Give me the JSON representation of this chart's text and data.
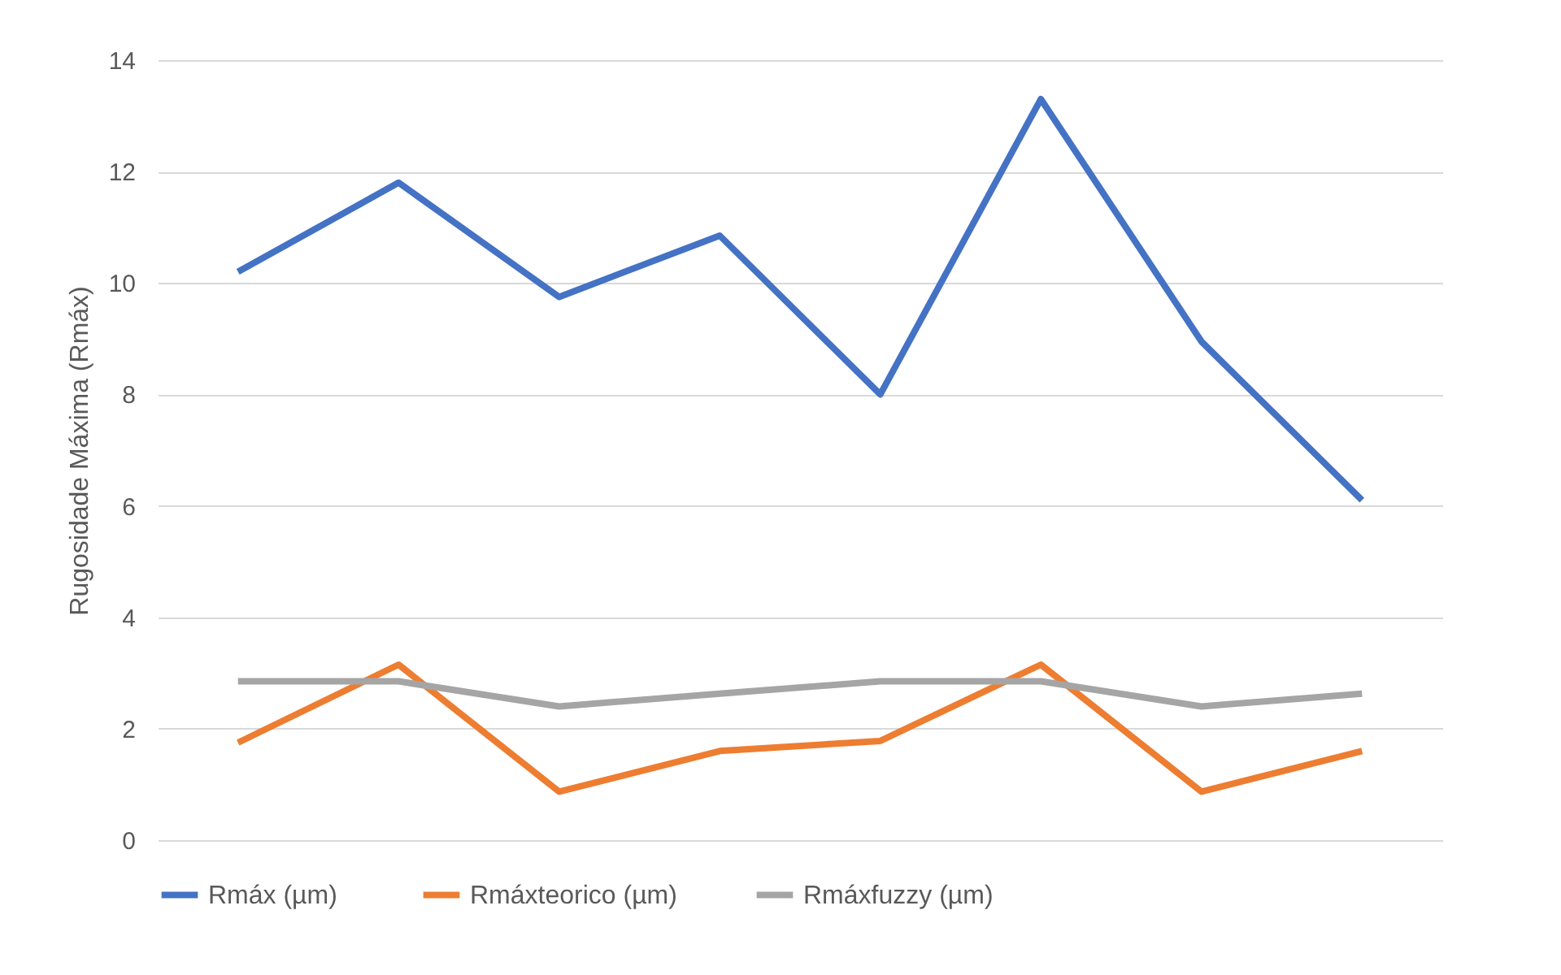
{
  "chart_data": {
    "type": "line",
    "ylabel": "Rugosidade Máxima (Rmáx)",
    "categories": [
      null,
      null,
      null,
      null,
      null,
      null,
      null,
      null
    ],
    "series": [
      {
        "name": "Rmáx  (µm)",
        "color": "#4472c4",
        "values": [
          10.2,
          11.8,
          9.75,
          10.85,
          8.0,
          13.3,
          8.95,
          6.1
        ]
      },
      {
        "name": "Rmáxteorico (µm)",
        "color": "#ed7d31",
        "values": [
          1.75,
          3.15,
          0.87,
          1.6,
          1.78,
          3.15,
          0.87,
          1.6
        ]
      },
      {
        "name": "Rmáxfuzzy (µm)",
        "color": "#a5a5a5",
        "values": [
          2.85,
          2.85,
          2.4,
          2.63,
          2.85,
          2.85,
          2.4,
          2.63
        ]
      }
    ],
    "ylim": [
      0,
      14
    ],
    "yticks": [
      0,
      2,
      4,
      6,
      8,
      10,
      12,
      14
    ],
    "grid": "y",
    "legend": "bottom",
    "tick_labels": "y",
    "marker": "none",
    "line_style": "solid"
  }
}
